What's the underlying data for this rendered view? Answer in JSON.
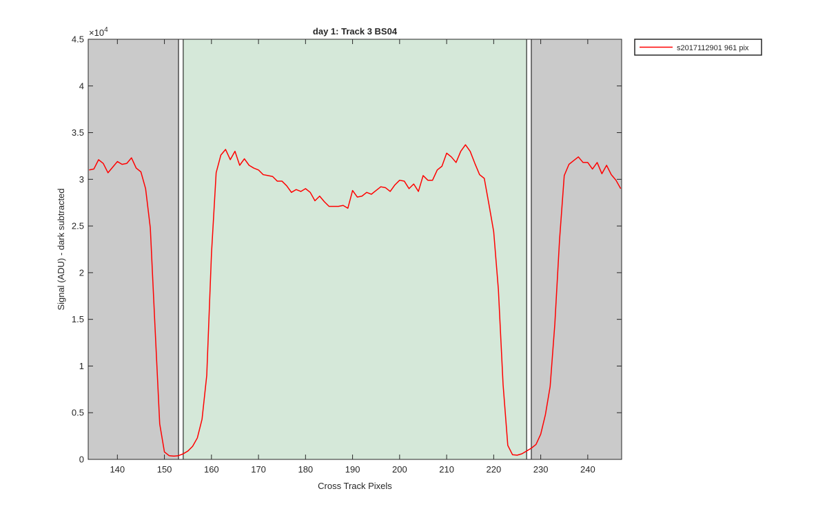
{
  "chart_data": {
    "type": "line",
    "title": "day 1: Track 3  BS04",
    "xlabel": "Cross Track Pixels",
    "ylabel": "Signal (ADU) - dark subtracted",
    "y_exponent_label": "×10",
    "y_exponent": "4",
    "xlim": [
      133.8,
      247.2
    ],
    "ylim": [
      0,
      45000
    ],
    "xticks": [
      140,
      150,
      160,
      170,
      180,
      190,
      200,
      210,
      220,
      230,
      240
    ],
    "yticks": [
      0,
      5000,
      10000,
      15000,
      20000,
      25000,
      30000,
      35000,
      40000,
      45000
    ],
    "ytick_labels": [
      "0",
      "0.5",
      "1",
      "1.5",
      "2",
      "2.5",
      "3",
      "3.5",
      "4",
      "4.5"
    ],
    "legend_position": "outside-top-right",
    "shaded_regions": [
      {
        "x0": 133.8,
        "x1": 153.0,
        "color": "#cacaca"
      },
      {
        "x0": 154.0,
        "x1": 227.0,
        "color": "#d5e8d9"
      },
      {
        "x0": 228.0,
        "x1": 247.2,
        "color": "#cacaca"
      }
    ],
    "boundary_boxes": [
      {
        "x0": 153.0,
        "x1": 154.0
      },
      {
        "x0": 227.0,
        "x1": 228.0
      }
    ],
    "series": [
      {
        "name": "s2017112901 961 pix",
        "color": "#ff0000",
        "x": [
          134,
          135,
          136,
          137,
          138,
          139,
          140,
          141,
          142,
          143,
          144,
          145,
          146,
          147,
          148,
          149,
          150,
          151,
          152,
          153,
          154,
          155,
          156,
          157,
          158,
          159,
          160,
          161,
          162,
          163,
          164,
          165,
          166,
          167,
          168,
          169,
          170,
          171,
          172,
          173,
          174,
          175,
          176,
          177,
          178,
          179,
          180,
          181,
          182,
          183,
          184,
          185,
          186,
          187,
          188,
          189,
          190,
          191,
          192,
          193,
          194,
          195,
          196,
          197,
          198,
          199,
          200,
          201,
          202,
          203,
          204,
          205,
          206,
          207,
          208,
          209,
          210,
          211,
          212,
          213,
          214,
          215,
          216,
          217,
          218,
          219,
          220,
          221,
          222,
          223,
          224,
          225,
          226,
          227,
          228,
          229,
          230,
          231,
          232,
          233,
          234,
          235,
          236,
          237,
          238,
          239,
          240,
          241,
          242,
          243,
          244,
          245,
          246,
          247
        ],
        "y": [
          31000,
          31100,
          32100,
          31700,
          30700,
          31300,
          31900,
          31600,
          31700,
          32300,
          31200,
          30800,
          29000,
          24800,
          14200,
          3800,
          800,
          400,
          350,
          400,
          600,
          900,
          1400,
          2300,
          4300,
          9000,
          22000,
          30700,
          32600,
          33200,
          32100,
          33000,
          31500,
          32200,
          31500,
          31200,
          31000,
          30500,
          30400,
          30300,
          29800,
          29800,
          29300,
          28600,
          28900,
          28700,
          29000,
          28600,
          27700,
          28200,
          27600,
          27100,
          27100,
          27100,
          27200,
          26900,
          28800,
          28100,
          28200,
          28600,
          28400,
          28800,
          29200,
          29100,
          28700,
          29400,
          29900,
          29800,
          29000,
          29500,
          28700,
          30400,
          29900,
          29900,
          31000,
          31400,
          32800,
          32400,
          31800,
          33000,
          33700,
          33000,
          31700,
          30500,
          30100,
          27300,
          24400,
          18200,
          8000,
          1500,
          500,
          450,
          600,
          900,
          1200,
          1600,
          2700,
          4800,
          7800,
          14500,
          23500,
          30400,
          31600,
          32000,
          32400,
          31800,
          31800,
          31100,
          31800,
          30600,
          31500,
          30500,
          29900,
          29000
        ]
      }
    ]
  }
}
